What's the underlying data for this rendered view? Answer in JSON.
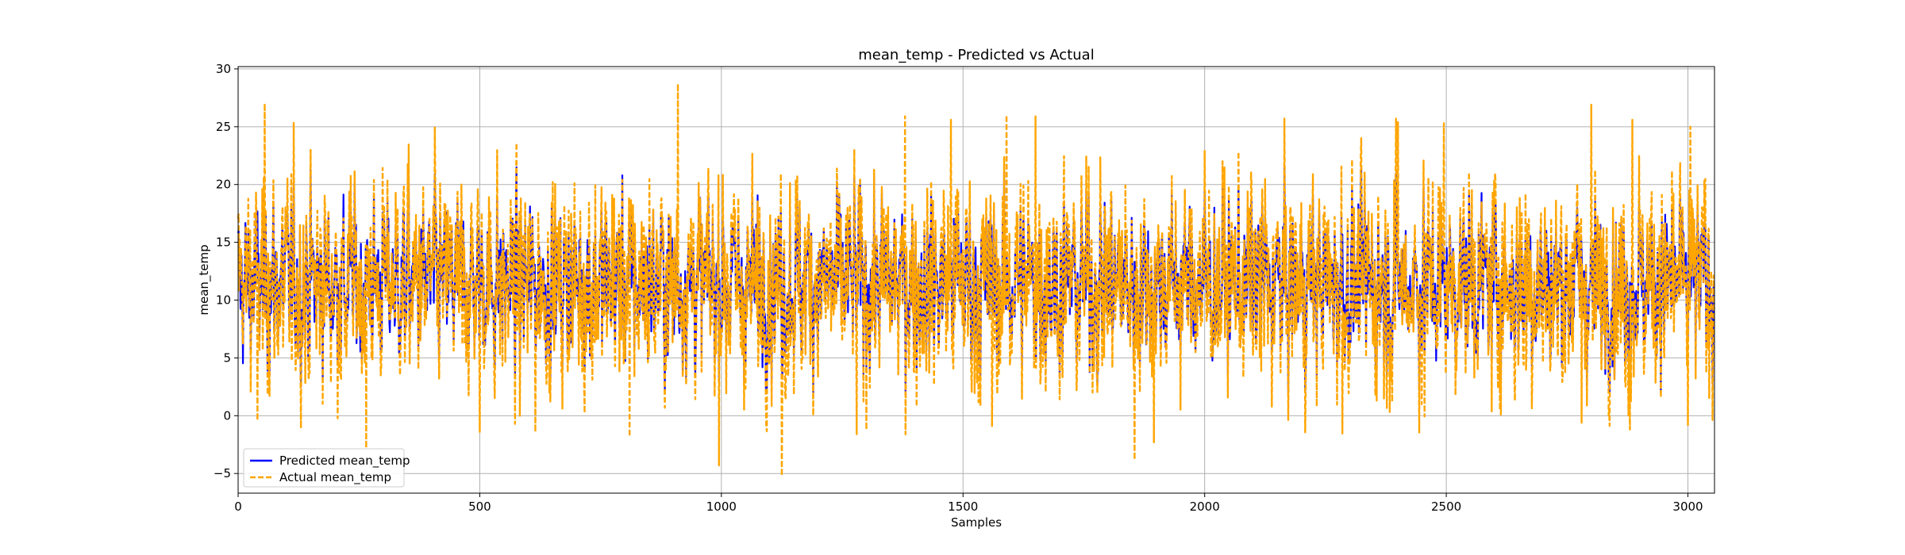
{
  "chart_data": {
    "type": "line",
    "title": "mean_temp - Predicted vs Actual",
    "xlabel": "Samples",
    "ylabel": "mean_temp",
    "xlim": [
      0,
      3055
    ],
    "ylim": [
      -6.7,
      30.2
    ],
    "xticks": [
      0,
      500,
      1000,
      1500,
      2000,
      2500,
      3000
    ],
    "yticks": [
      -5,
      0,
      5,
      10,
      15,
      20,
      25,
      30
    ],
    "grid": true,
    "legend_position": "lower-left",
    "n_samples": 3055,
    "series": [
      {
        "name": "Predicted mean_temp",
        "color": "#0000ff",
        "style": "solid",
        "mean": 11.5,
        "amplitude": 5.2,
        "min": 2.0,
        "max": 21.5
      },
      {
        "name": "Actual mean_temp",
        "color": "#ffa500",
        "style": "dashed",
        "mean": 11.5,
        "amplitude": 6.4,
        "min": -5.2,
        "max": 28.7
      }
    ],
    "peaks": [
      {
        "x": 55,
        "y": 27.0
      },
      {
        "x": 910,
        "y": 28.7
      },
      {
        "x": 1380,
        "y": 25.9
      },
      {
        "x": 1475,
        "y": 25.6
      },
      {
        "x": 1590,
        "y": 26.0
      },
      {
        "x": 1650,
        "y": 25.9
      },
      {
        "x": 2400,
        "y": 25.4
      },
      {
        "x": 2495,
        "y": 25.3
      },
      {
        "x": 2800,
        "y": 26.9
      },
      {
        "x": 2885,
        "y": 25.6
      },
      {
        "x": 3005,
        "y": 25.0
      }
    ],
    "troughs": [
      {
        "x": 40,
        "y": -0.4
      },
      {
        "x": 265,
        "y": -2.8
      },
      {
        "x": 500,
        "y": -1.4
      },
      {
        "x": 615,
        "y": -1.4
      },
      {
        "x": 810,
        "y": -1.8
      },
      {
        "x": 995,
        "y": -4.3
      },
      {
        "x": 1125,
        "y": -5.2
      },
      {
        "x": 1280,
        "y": -1.6
      },
      {
        "x": 1560,
        "y": -0.9
      },
      {
        "x": 1855,
        "y": -3.8
      },
      {
        "x": 1895,
        "y": -2.3
      },
      {
        "x": 2285,
        "y": -1.6
      },
      {
        "x": 2780,
        "y": -0.6
      },
      {
        "x": 2880,
        "y": -1.2
      },
      {
        "x": 3000,
        "y": -0.8
      }
    ]
  }
}
